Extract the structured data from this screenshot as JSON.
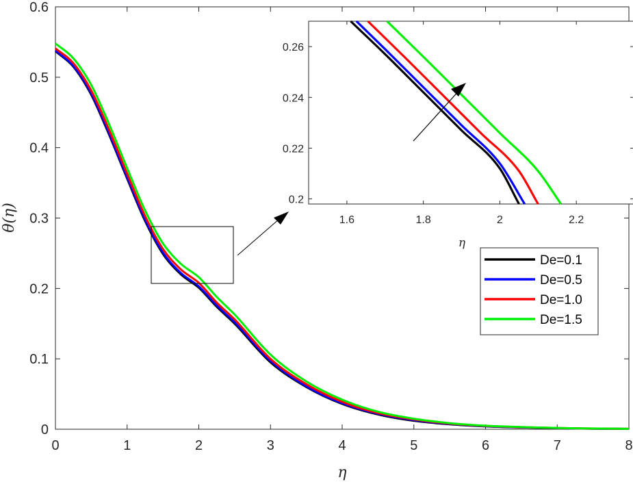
{
  "chart_data": [
    {
      "type": "line",
      "xlabel": "η",
      "ylabel": "θ(η)",
      "xlim": [
        0,
        8
      ],
      "ylim": [
        0,
        0.6
      ],
      "x_ticks": [
        "0",
        "1",
        "2",
        "3",
        "4",
        "5",
        "6",
        "7",
        "8"
      ],
      "y_ticks": [
        "0",
        "0.1",
        "0.2",
        "0.3",
        "0.4",
        "0.5",
        "0.6"
      ],
      "grid": false,
      "legend_position": "right",
      "x": [
        0,
        0.25,
        0.5,
        0.75,
        1,
        1.25,
        1.5,
        1.75,
        2,
        2.25,
        2.5,
        3,
        3.5,
        4,
        4.5,
        5,
        5.5,
        6,
        6.5,
        7,
        7.5,
        8
      ],
      "series": [
        {
          "name": "De=0.1",
          "color": "#000000",
          "values": [
            0.537,
            0.515,
            0.475,
            0.418,
            0.356,
            0.296,
            0.249,
            0.22,
            0.201,
            0.174,
            0.15,
            0.095,
            0.06,
            0.036,
            0.021,
            0.012,
            0.007,
            0.004,
            0.0025,
            0.0015,
            0.0008,
            0.0005
          ]
        },
        {
          "name": "De=0.5",
          "color": "#0000ff",
          "values": [
            0.538,
            0.516,
            0.477,
            0.42,
            0.358,
            0.298,
            0.251,
            0.222,
            0.203,
            0.176,
            0.152,
            0.097,
            0.061,
            0.037,
            0.022,
            0.013,
            0.0075,
            0.0043,
            0.0027,
            0.0016,
            0.0009,
            0.0005
          ]
        },
        {
          "name": "De=1.0",
          "color": "#ff0000",
          "values": [
            0.541,
            0.52,
            0.481,
            0.425,
            0.363,
            0.303,
            0.256,
            0.227,
            0.208,
            0.18,
            0.156,
            0.1,
            0.064,
            0.039,
            0.023,
            0.014,
            0.008,
            0.0046,
            0.0029,
            0.0017,
            0.001,
            0.0006
          ]
        },
        {
          "name": "De=1.5",
          "color": "#00ee00",
          "values": [
            0.548,
            0.527,
            0.489,
            0.433,
            0.371,
            0.311,
            0.264,
            0.235,
            0.216,
            0.188,
            0.163,
            0.106,
            0.068,
            0.042,
            0.025,
            0.015,
            0.0087,
            0.005,
            0.0031,
            0.0018,
            0.0011,
            0.0006
          ]
        }
      ]
    },
    {
      "type": "line",
      "xlabel": "η",
      "ylabel": "",
      "xlim": [
        1.5,
        2.35
      ],
      "ylim": [
        0.198,
        0.27
      ],
      "x_ticks": [
        "1.6",
        "1.8",
        "2",
        "2.2"
      ],
      "y_ticks": [
        "0.2",
        "0.22",
        "0.24",
        "0.26"
      ],
      "grid": false,
      "series": [
        {
          "name": "De=0.1",
          "color": "#000000",
          "x": [
            1.61,
            1.7,
            1.8,
            1.9,
            2.0,
            2.05
          ],
          "values": [
            0.27,
            0.257,
            0.242,
            0.227,
            0.212,
            0.198
          ]
        },
        {
          "name": "De=0.5",
          "color": "#0000ff",
          "x": [
            1.625,
            1.7,
            1.8,
            1.9,
            2.0,
            2.065
          ],
          "values": [
            0.27,
            0.259,
            0.244,
            0.229,
            0.214,
            0.198
          ]
        },
        {
          "name": "De=1.0",
          "color": "#ff0000",
          "x": [
            1.655,
            1.75,
            1.85,
            1.95,
            2.05,
            2.1
          ],
          "values": [
            0.27,
            0.256,
            0.241,
            0.226,
            0.211,
            0.198
          ]
        },
        {
          "name": "De=1.5",
          "color": "#00ee00",
          "x": [
            1.705,
            1.8,
            1.9,
            2.0,
            2.1,
            2.16
          ],
          "values": [
            0.27,
            0.256,
            0.241,
            0.226,
            0.211,
            0.198
          ]
        }
      ]
    }
  ]
}
